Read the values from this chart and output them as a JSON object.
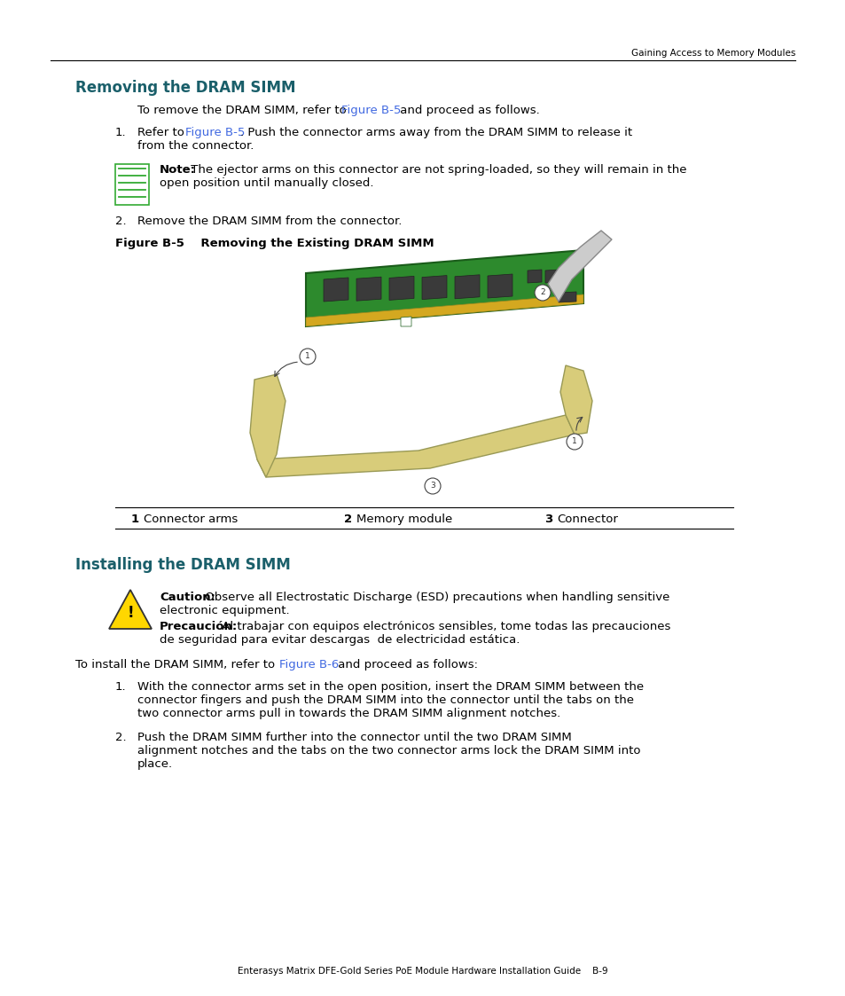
{
  "bg_color": "#ffffff",
  "header_line_color": "#000000",
  "header_text": "Gaining Access to Memory Modules",
  "section1_title": "Removing the DRAM SIMM",
  "section1_title_color": "#1a5f6a",
  "section2_title": "Installing the DRAM SIMM",
  "section2_title_color": "#1a5f6a",
  "link_color": "#4169e1",
  "text_color": "#000000",
  "body_font_size": 9.5,
  "title_font_size": 12,
  "figure_label": "Figure B-5    Removing the Existing DRAM SIMM",
  "figure_label_color": "#000000",
  "footer_text": "Enterasys Matrix DFE-Gold Series PoE Module Hardware Installation Guide    B-9",
  "table_items": [
    {
      "num": "1",
      "label": "Connector arms"
    },
    {
      "num": "2",
      "label": "Memory module"
    },
    {
      "num": "3",
      "label": "Connector"
    }
  ],
  "note_bold": "Note:",
  "note_text": " The ejector arms on this connector are not spring-loaded, so they will remain in the\nopen position until manually closed.",
  "step2": "Remove the DRAM SIMM from the connector.",
  "caution_bold": "Caution:",
  "precaucion_bold": "Precaución:"
}
